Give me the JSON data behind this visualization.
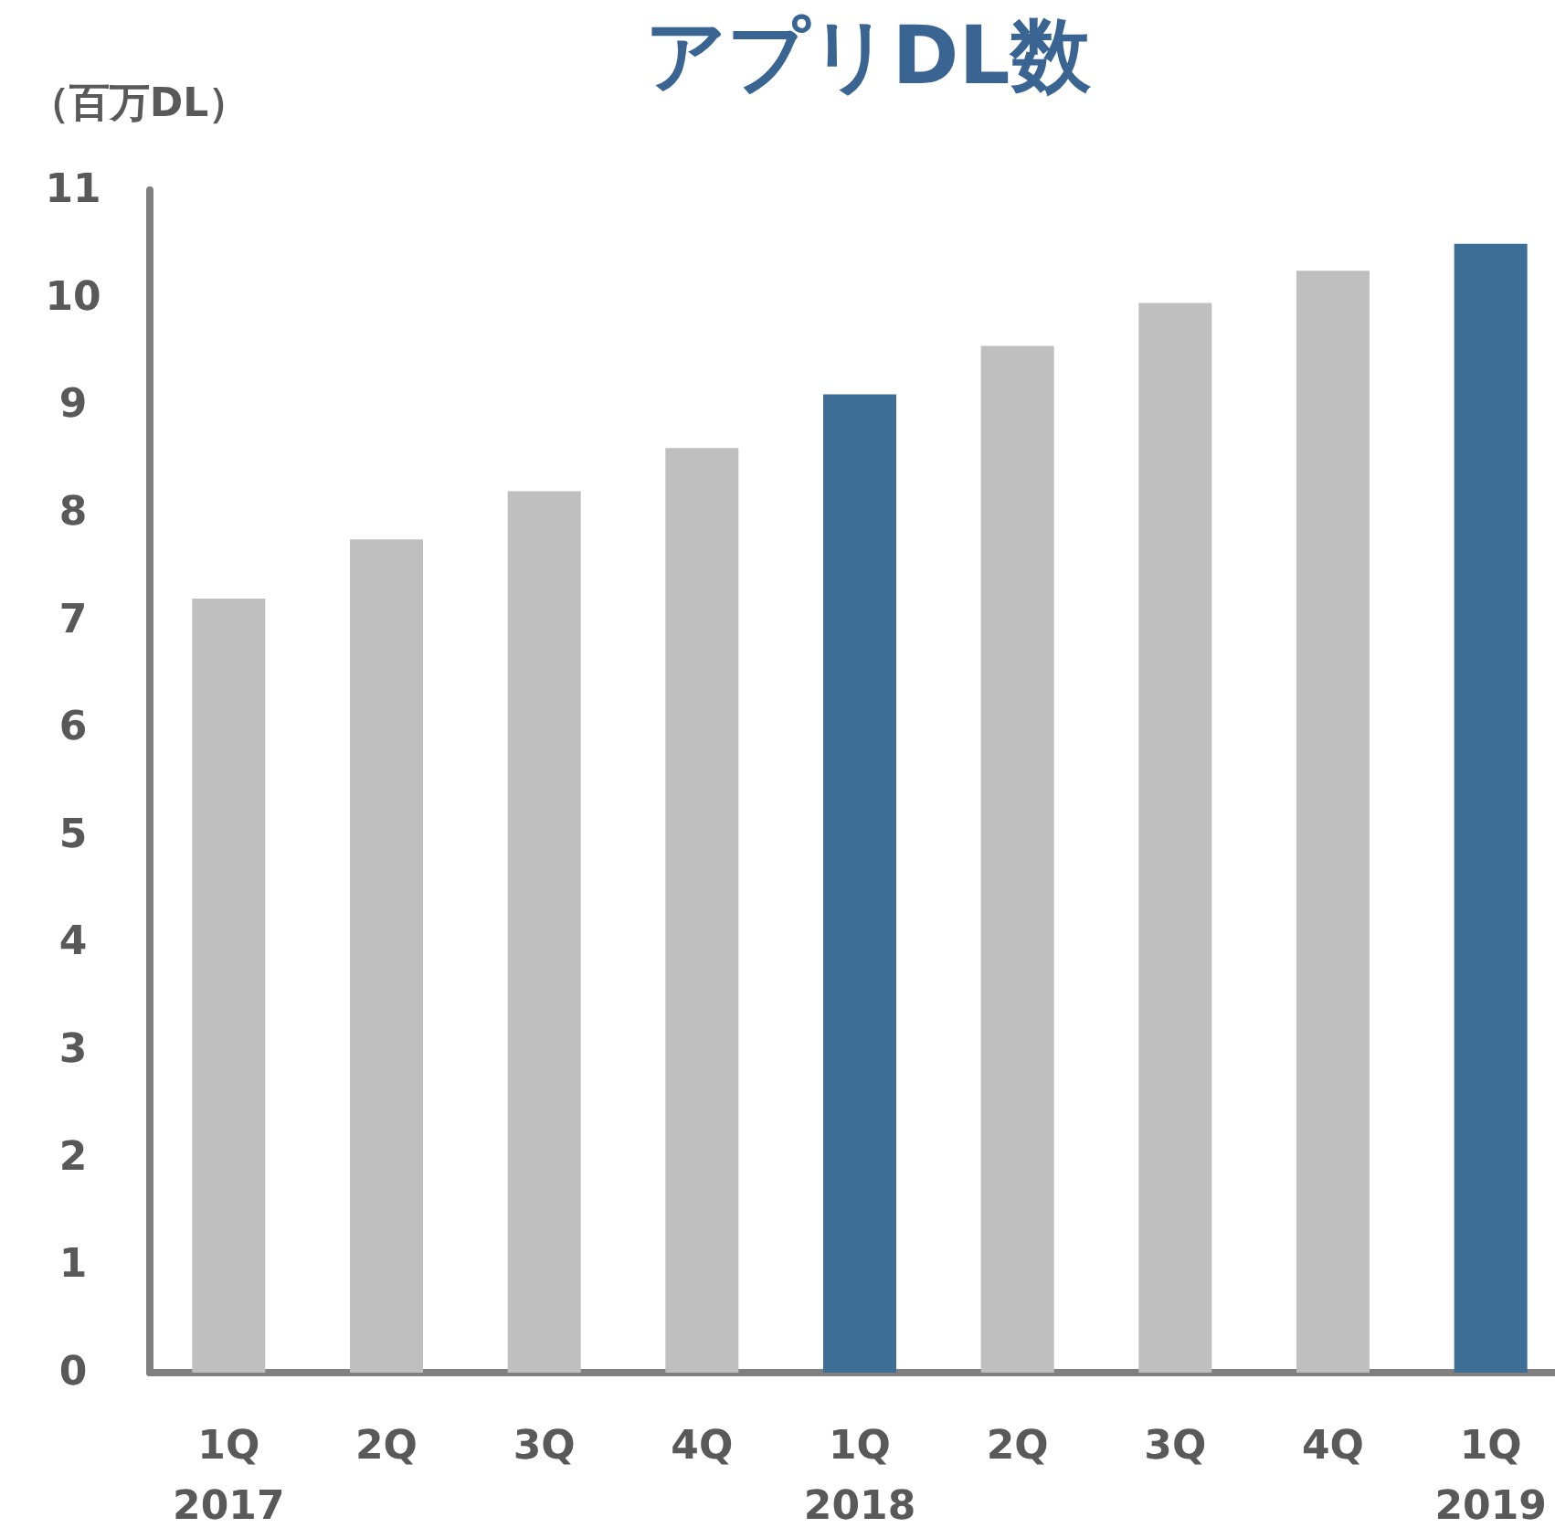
{
  "chart_data": {
    "type": "bar",
    "title": "アプリDL数",
    "ylabel": "（百万DL）",
    "categories": [
      "1Q\n2017",
      "2Q",
      "3Q",
      "4Q",
      "1Q\n2018",
      "2Q",
      "3Q",
      "4Q",
      "1Q\n2019"
    ],
    "values": [
      7.2,
      7.75,
      8.2,
      8.6,
      9.1,
      9.55,
      9.95,
      10.25,
      10.5
    ],
    "colors": [
      "#bfbfbf",
      "#bfbfbf",
      "#bfbfbf",
      "#bfbfbf",
      "#3d6e96",
      "#bfbfbf",
      "#bfbfbf",
      "#bfbfbf",
      "#3d6e96"
    ],
    "ylim": [
      0,
      11
    ],
    "yticks": [
      0,
      1,
      2,
      3,
      4,
      5,
      6,
      7,
      8,
      9,
      10,
      11
    ]
  }
}
